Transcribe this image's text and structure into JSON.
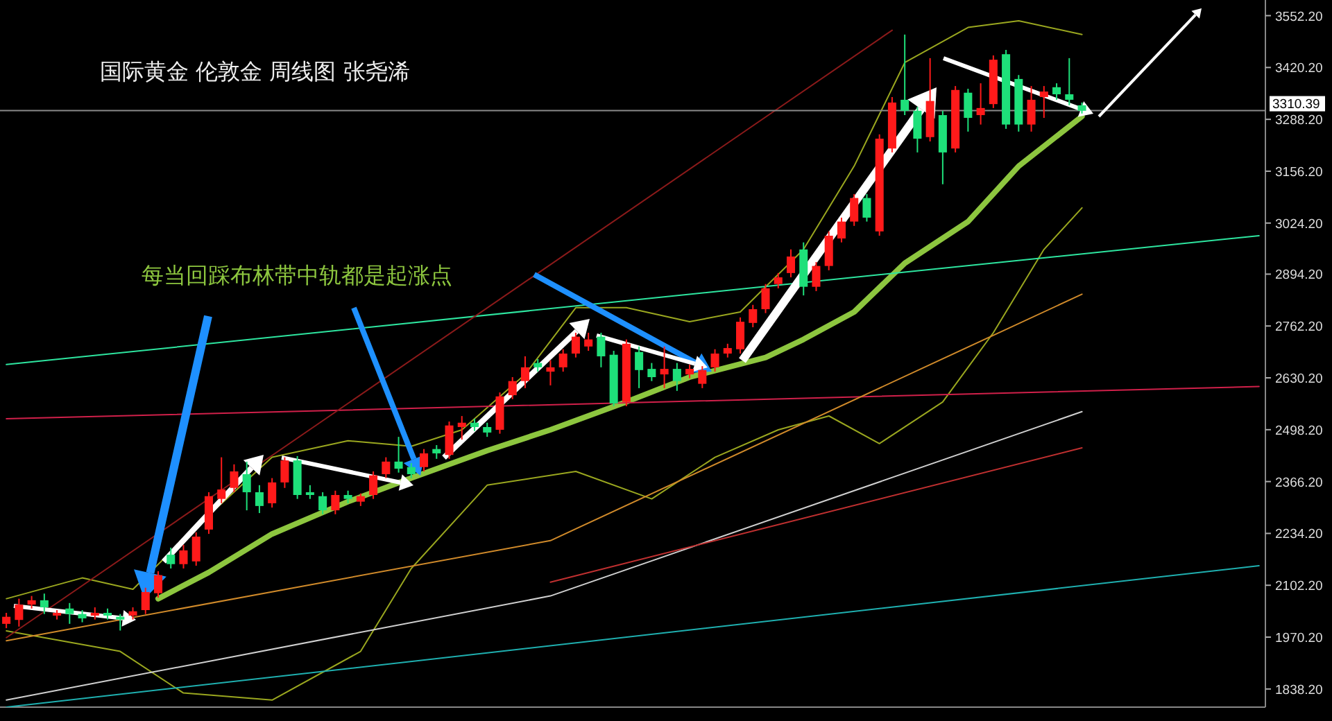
{
  "chart_data": {
    "type": "candlestick",
    "title": "国际黄金 伦敦金 周线图 张尧浠",
    "annotations": [
      "每当回踩布林带中轨都是起涨点"
    ],
    "categories": [
      null,
      null,
      null,
      null,
      null,
      null,
      null,
      null,
      null,
      null,
      null,
      null,
      null,
      null,
      null,
      null,
      null,
      null,
      null,
      null,
      null,
      null,
      null,
      null,
      null,
      null,
      null,
      null,
      null,
      null,
      null,
      null,
      null,
      null,
      null,
      null,
      null,
      null,
      null,
      null,
      null,
      null,
      null,
      null,
      null,
      null,
      null,
      null,
      null,
      null,
      null,
      null,
      null,
      null,
      null,
      null,
      null,
      null,
      null,
      null,
      null,
      null,
      null,
      null,
      null,
      null,
      null,
      null,
      null,
      null,
      null,
      null,
      null,
      null,
      null,
      null,
      null,
      null,
      null,
      null,
      null,
      null,
      null,
      null,
      null,
      null,
      null,
      null,
      null,
      null,
      null,
      null,
      null,
      null,
      null,
      null,
      null,
      null,
      null,
      null
    ],
    "ohlc": [
      [
        2004,
        2032,
        1993,
        2022
      ],
      [
        2014,
        2068,
        1997,
        2053
      ],
      [
        2053,
        2075,
        2043,
        2064
      ],
      [
        2064,
        2081,
        2029,
        2046
      ],
      [
        2025,
        2039,
        2015,
        2032
      ],
      [
        2043,
        2057,
        2004,
        2029
      ],
      [
        2029,
        2039,
        2008,
        2018
      ],
      [
        2025,
        2046,
        2015,
        2032
      ],
      [
        2032,
        2043,
        2015,
        2025
      ],
      [
        2022,
        2029,
        1987,
        2015
      ],
      [
        2025,
        2046,
        2015,
        2036
      ],
      [
        2039,
        2096,
        2029,
        2085
      ],
      [
        2082,
        2138,
        2071,
        2128
      ],
      [
        2180,
        2198,
        2145,
        2156
      ],
      [
        2156,
        2205,
        2145,
        2191
      ],
      [
        2163,
        2237,
        2152,
        2226
      ],
      [
        2244,
        2339,
        2233,
        2329
      ],
      [
        2322,
        2428,
        2311,
        2346
      ],
      [
        2350,
        2410,
        2339,
        2392
      ],
      [
        2385,
        2417,
        2293,
        2339
      ],
      [
        2339,
        2357,
        2286,
        2304
      ],
      [
        2311,
        2375,
        2300,
        2364
      ],
      [
        2364,
        2428,
        2350,
        2420
      ],
      [
        2420,
        2431,
        2322,
        2332
      ],
      [
        2339,
        2357,
        2322,
        2332
      ],
      [
        2329,
        2339,
        2283,
        2293
      ],
      [
        2293,
        2343,
        2283,
        2332
      ],
      [
        2332,
        2343,
        2311,
        2322
      ],
      [
        2315,
        2336,
        2304,
        2329
      ],
      [
        2332,
        2392,
        2322,
        2382
      ],
      [
        2385,
        2428,
        2375,
        2417
      ],
      [
        2417,
        2480,
        2389,
        2399
      ],
      [
        2403,
        2413,
        2375,
        2385
      ],
      [
        2403,
        2449,
        2392,
        2438
      ],
      [
        2449,
        2459,
        2424,
        2438
      ],
      [
        2434,
        2519,
        2424,
        2509
      ],
      [
        2505,
        2533,
        2473,
        2516
      ],
      [
        2516,
        2526,
        2495,
        2505
      ],
      [
        2505,
        2516,
        2480,
        2491
      ],
      [
        2498,
        2593,
        2488,
        2583
      ],
      [
        2586,
        2632,
        2576,
        2622
      ],
      [
        2622,
        2685,
        2604,
        2657
      ],
      [
        2668,
        2678,
        2646,
        2657
      ],
      [
        2646,
        2675,
        2611,
        2657
      ],
      [
        2657,
        2703,
        2646,
        2692
      ],
      [
        2692,
        2745,
        2682,
        2735
      ],
      [
        2710,
        2745,
        2699,
        2728
      ],
      [
        2735,
        2745,
        2657,
        2685
      ],
      [
        2689,
        2699,
        2558,
        2565
      ],
      [
        2569,
        2728,
        2558,
        2717
      ],
      [
        2696,
        2710,
        2604,
        2650
      ],
      [
        2653,
        2668,
        2622,
        2632
      ],
      [
        2639,
        2710,
        2604,
        2653
      ],
      [
        2653,
        2668,
        2597,
        2622
      ],
      [
        2639,
        2664,
        2629,
        2653
      ],
      [
        2615,
        2660,
        2604,
        2650
      ],
      [
        2657,
        2703,
        2646,
        2692
      ],
      [
        2692,
        2717,
        2682,
        2706
      ],
      [
        2703,
        2784,
        2692,
        2773
      ],
      [
        2770,
        2816,
        2759,
        2805
      ],
      [
        2805,
        2869,
        2795,
        2858
      ],
      [
        2869,
        2897,
        2858,
        2886
      ],
      [
        2897,
        2957,
        2886,
        2939
      ],
      [
        2957,
        2975,
        2840,
        2862
      ],
      [
        2862,
        2925,
        2851,
        2915
      ],
      [
        2915,
        3003,
        2904,
        2992
      ],
      [
        2985,
        3038,
        2975,
        3028
      ],
      [
        3028,
        3098,
        3017,
        3088
      ],
      [
        3088,
        3098,
        3028,
        3038
      ],
      [
        3003,
        3250,
        2992,
        3239
      ],
      [
        3214,
        3345,
        3204,
        3331
      ],
      [
        3338,
        3504,
        3299,
        3310
      ],
      [
        3310,
        3320,
        3204,
        3239
      ],
      [
        3243,
        3444,
        3232,
        3335
      ],
      [
        3299,
        3310,
        3123,
        3204
      ],
      [
        3214,
        3373,
        3204,
        3363
      ],
      [
        3356,
        3366,
        3257,
        3292
      ],
      [
        3299,
        3380,
        3275,
        3317
      ],
      [
        3327,
        3451,
        3317,
        3440
      ],
      [
        3454,
        3465,
        3264,
        3275
      ],
      [
        3391,
        3401,
        3257,
        3275
      ],
      [
        3275,
        3373,
        3257,
        3338
      ],
      [
        3345,
        3373,
        3292,
        3359
      ],
      [
        3370,
        3380,
        3338,
        3352
      ],
      [
        3352,
        3444,
        3324,
        3338
      ],
      [
        3324,
        3331,
        3303,
        3310
      ],
      null,
      null,
      null,
      null,
      null,
      null,
      null,
      null,
      null,
      null,
      null,
      null,
      null,
      null
    ],
    "colors": [
      "#ff1a1a",
      "#ff1a1a",
      "#ff1a1a",
      "#1ee07a",
      "#ff1a1a",
      "#1ee07a",
      "#1ee07a",
      "#ff1a1a",
      "#1ee07a",
      "#1ee07a",
      "#ff1a1a",
      "#ff1a1a",
      "#ff1a1a",
      "#1ee07a",
      "#ff1a1a",
      "#ff1a1a",
      "#ff1a1a",
      "#ff1a1a",
      "#ff1a1a",
      "#1ee07a",
      "#1ee07a",
      "#ff1a1a",
      "#ff1a1a",
      "#1ee07a",
      "#1ee07a",
      "#1ee07a",
      "#ff1a1a",
      "#1ee07a",
      "#ff1a1a",
      "#ff1a1a",
      "#ff1a1a",
      "#1ee07a",
      "#1ee07a",
      "#ff1a1a",
      "#1ee07a",
      "#ff1a1a",
      "#ff1a1a",
      "#1ee07a",
      "#1ee07a",
      "#ff1a1a",
      "#ff1a1a",
      "#ff1a1a",
      "#1ee07a",
      "#ff1a1a",
      "#ff1a1a",
      "#ff1a1a",
      "#ff1a1a",
      "#1ee07a",
      "#1ee07a",
      "#ff1a1a",
      "#1ee07a",
      "#1ee07a",
      "#ff1a1a",
      "#1ee07a",
      "#ff1a1a",
      "#ff1a1a",
      "#ff1a1a",
      "#ff1a1a",
      "#ff1a1a",
      "#ff1a1a",
      "#ff1a1a",
      "#ff1a1a",
      "#ff1a1a",
      "#1ee07a",
      "#ff1a1a",
      "#ff1a1a",
      "#ff1a1a",
      "#ff1a1a",
      "#1ee07a",
      "#ff1a1a",
      "#ff1a1a",
      "#1ee07a",
      "#1ee07a",
      "#ff1a1a",
      "#1ee07a",
      "#ff1a1a",
      "#1ee07a",
      "#ff1a1a",
      "#ff1a1a",
      "#1ee07a",
      "#1ee07a",
      "#ff1a1a",
      "#ff1a1a",
      "#1ee07a",
      "#1ee07a",
      "#1ee07a",
      null,
      null,
      null,
      null,
      null,
      null,
      null,
      null,
      null,
      null,
      null,
      null,
      null,
      null
    ],
    "series": [
      {
        "type": "line",
        "color": "#8dc63f",
        "values": [
          null,
          null,
          null,
          null,
          null,
          null,
          null,
          null,
          null,
          null,
          null,
          null,
          2068,
          null,
          null,
          null,
          2135,
          null,
          null,
          null,
          null,
          2233,
          null,
          null,
          null,
          null,
          null,
          2315,
          null,
          null,
          null,
          null,
          2375,
          null,
          null,
          null,
          null,
          null,
          2445,
          null,
          null,
          null,
          null,
          2498,
          null,
          null,
          null,
          null,
          null,
          2569,
          null,
          null,
          null,
          null,
          2632,
          null,
          null,
          null,
          null,
          null,
          2682,
          null,
          null,
          2728,
          null,
          null,
          null,
          2798,
          null,
          null,
          null,
          2922,
          null,
          null,
          null,
          null,
          3028,
          null,
          null,
          null,
          3169,
          null,
          null,
          null,
          null,
          3296,
          null,
          null,
          null,
          null,
          null,
          null,
          null,
          null,
          null,
          null,
          null,
          null,
          null,
          null
        ]
      },
      {
        "type": "line",
        "color": "#9aa71f",
        "values": [
          2068,
          null,
          null,
          null,
          null,
          null,
          2121,
          null,
          null,
          null,
          2092,
          null,
          null,
          null,
          null,
          2251,
          null,
          null,
          null,
          null,
          null,
          2428,
          null,
          null,
          null,
          null,
          null,
          2470,
          null,
          null,
          null,
          null,
          2456,
          null,
          null,
          null,
          2498,
          null,
          null,
          null,
          null,
          2639,
          null,
          null,
          null,
          2809,
          null,
          null,
          null,
          2809,
          null,
          null,
          null,
          null,
          2773,
          null,
          null,
          null,
          2798,
          null,
          null,
          null,
          null,
          2957,
          null,
          null,
          null,
          3169,
          null,
          null,
          null,
          3433,
          null,
          null,
          null,
          null,
          3522,
          null,
          null,
          null,
          3539,
          null,
          null,
          null,
          null,
          3504,
          null,
          null,
          null,
          null,
          null,
          null,
          null,
          null,
          null,
          null,
          null,
          null,
          null,
          null
        ]
      },
      {
        "type": "line",
        "color": "#9aa71f",
        "values": [
          1986,
          null,
          null,
          null,
          null,
          null,
          null,
          null,
          null,
          1934,
          null,
          null,
          null,
          null,
          1828,
          null,
          null,
          null,
          null,
          null,
          null,
          1810,
          null,
          null,
          null,
          null,
          null,
          null,
          1934,
          null,
          null,
          null,
          2145,
          null,
          null,
          null,
          null,
          null,
          2357,
          null,
          null,
          null,
          null,
          null,
          null,
          2392,
          null,
          null,
          null,
          null,
          null,
          2322,
          null,
          null,
          null,
          null,
          2428,
          null,
          null,
          null,
          null,
          2498,
          null,
          null,
          null,
          2533,
          null,
          null,
          null,
          2463,
          null,
          null,
          null,
          null,
          2569,
          null,
          null,
          null,
          2745,
          null,
          null,
          null,
          2957,
          null,
          null,
          3063,
          null,
          null,
          null,
          null,
          null,
          null,
          null,
          null,
          null,
          null,
          null,
          null,
          null,
          null
        ]
      },
      {
        "type": "line",
        "color": "#2ee6a0",
        "values": [
          2664,
          null,
          null,
          null,
          null,
          null,
          null,
          null,
          null,
          null,
          null,
          null,
          null,
          null,
          null,
          null,
          null,
          null,
          null,
          null,
          null,
          null,
          null,
          null,
          null,
          null,
          null,
          null,
          null,
          null,
          null,
          null,
          null,
          null,
          null,
          null,
          null,
          null,
          null,
          null,
          null,
          null,
          null,
          null,
          null,
          null,
          null,
          null,
          null,
          null,
          null,
          null,
          null,
          null,
          null,
          null,
          null,
          null,
          null,
          null,
          null,
          null,
          null,
          null,
          null,
          null,
          null,
          null,
          null,
          null,
          null,
          null,
          null,
          null,
          null,
          null,
          null,
          null,
          null,
          null,
          null,
          null,
          null,
          null,
          null,
          null,
          null,
          null,
          null,
          null,
          null,
          null,
          null,
          null,
          null,
          null,
          null,
          null,
          null,
          2992
        ]
      },
      {
        "type": "line",
        "color": "#d0204a",
        "values": [
          2526,
          null,
          null,
          null,
          null,
          null,
          null,
          null,
          null,
          null,
          null,
          null,
          null,
          null,
          null,
          null,
          null,
          null,
          null,
          null,
          null,
          null,
          null,
          null,
          null,
          null,
          null,
          null,
          null,
          null,
          null,
          null,
          null,
          null,
          null,
          null,
          null,
          null,
          null,
          null,
          null,
          null,
          null,
          null,
          null,
          null,
          null,
          null,
          null,
          null,
          null,
          null,
          null,
          null,
          null,
          null,
          null,
          null,
          null,
          null,
          null,
          null,
          null,
          null,
          null,
          null,
          null,
          null,
          null,
          null,
          null,
          null,
          null,
          null,
          null,
          null,
          null,
          null,
          null,
          null,
          null,
          null,
          null,
          null,
          null,
          null,
          null,
          null,
          null,
          null,
          null,
          null,
          null,
          null,
          null,
          null,
          null,
          null,
          null,
          2608
        ]
      },
      {
        "type": "line",
        "color": "#8b1a1a",
        "values": [
          1969,
          null,
          null,
          null,
          null,
          null,
          null,
          null,
          null,
          null,
          null,
          null,
          null,
          null,
          null,
          null,
          null,
          null,
          null,
          null,
          null,
          null,
          null,
          null,
          null,
          null,
          null,
          null,
          null,
          null,
          null,
          null,
          null,
          null,
          null,
          null,
          null,
          null,
          null,
          null,
          null,
          null,
          null,
          null,
          null,
          null,
          null,
          null,
          null,
          null,
          null,
          null,
          null,
          null,
          null,
          null,
          null,
          null,
          null,
          null,
          null,
          null,
          null,
          null,
          null,
          null,
          null,
          null,
          null,
          null,
          3515,
          null,
          null,
          null,
          null,
          null,
          null,
          null,
          null,
          null,
          null,
          null,
          null,
          null,
          null,
          null,
          null,
          null,
          null,
          null,
          null,
          null,
          null,
          null,
          null,
          null,
          null,
          null,
          null,
          null
        ]
      },
      {
        "type": "line",
        "color": "#1fb0b0",
        "values": [
          1792,
          null,
          null,
          null,
          null,
          null,
          null,
          null,
          null,
          null,
          null,
          null,
          null,
          null,
          null,
          null,
          null,
          null,
          null,
          null,
          null,
          null,
          null,
          null,
          null,
          null,
          null,
          null,
          null,
          null,
          null,
          null,
          null,
          null,
          null,
          null,
          null,
          null,
          null,
          null,
          null,
          null,
          null,
          null,
          null,
          null,
          null,
          null,
          null,
          null,
          null,
          null,
          null,
          null,
          null,
          null,
          null,
          null,
          null,
          null,
          null,
          null,
          null,
          null,
          null,
          null,
          null,
          null,
          null,
          null,
          null,
          null,
          null,
          null,
          null,
          null,
          null,
          null,
          null,
          null,
          null,
          null,
          null,
          null,
          null,
          null,
          null,
          null,
          null,
          null,
          null,
          null,
          null,
          null,
          null,
          null,
          null,
          null,
          null,
          2152
        ]
      },
      {
        "type": "line",
        "color": "#d0d0d0",
        "values": [
          1810,
          null,
          null,
          null,
          null,
          null,
          null,
          null,
          null,
          null,
          null,
          null,
          null,
          null,
          null,
          null,
          null,
          null,
          null,
          null,
          null,
          null,
          null,
          null,
          null,
          null,
          null,
          null,
          null,
          null,
          null,
          null,
          null,
          null,
          null,
          null,
          null,
          null,
          null,
          null,
          null,
          null,
          null,
          2075,
          null,
          null,
          null,
          null,
          null,
          null,
          null,
          null,
          null,
          null,
          null,
          null,
          null,
          null,
          null,
          null,
          null,
          null,
          null,
          null,
          null,
          null,
          null,
          null,
          null,
          null,
          null,
          null,
          null,
          null,
          null,
          null,
          null,
          null,
          null,
          null,
          null,
          null,
          null,
          null,
          null,
          2544,
          null,
          null,
          null,
          null,
          null,
          null,
          null,
          null,
          null,
          null,
          null,
          null,
          null,
          null
        ]
      },
      {
        "type": "line",
        "color": "#d08a2a",
        "values": [
          1961,
          null,
          null,
          null,
          null,
          null,
          null,
          null,
          null,
          null,
          null,
          null,
          null,
          null,
          null,
          null,
          null,
          null,
          null,
          null,
          null,
          null,
          null,
          null,
          null,
          null,
          null,
          null,
          null,
          null,
          null,
          null,
          null,
          null,
          null,
          null,
          null,
          null,
          null,
          null,
          null,
          null,
          null,
          2216,
          null,
          null,
          null,
          null,
          null,
          null,
          null,
          null,
          null,
          null,
          null,
          null,
          null,
          null,
          null,
          null,
          null,
          null,
          null,
          null,
          null,
          null,
          null,
          null,
          null,
          null,
          null,
          null,
          null,
          null,
          null,
          null,
          null,
          null,
          null,
          null,
          null,
          null,
          null,
          null,
          null,
          2843,
          null,
          null,
          null,
          null,
          null,
          null,
          null,
          null,
          null,
          null,
          null,
          null,
          null,
          null
        ]
      },
      {
        "type": "line",
        "color": "#c03030",
        "values": [
          null,
          null,
          null,
          null,
          null,
          null,
          null,
          null,
          null,
          null,
          null,
          null,
          null,
          null,
          null,
          null,
          null,
          null,
          null,
          null,
          null,
          null,
          null,
          null,
          null,
          null,
          null,
          null,
          null,
          null,
          null,
          null,
          null,
          null,
          null,
          null,
          null,
          null,
          null,
          null,
          null,
          null,
          null,
          2110,
          null,
          null,
          null,
          null,
          null,
          null,
          null,
          null,
          null,
          null,
          null,
          null,
          null,
          null,
          null,
          null,
          null,
          null,
          null,
          null,
          null,
          null,
          null,
          null,
          null,
          null,
          null,
          null,
          null,
          null,
          null,
          null,
          null,
          null,
          null,
          null,
          null,
          null,
          null,
          null,
          null,
          2452,
          null,
          null,
          null,
          null,
          null,
          null,
          null,
          null,
          null,
          null,
          null,
          null,
          null,
          null
        ]
      }
    ],
    "ylim": [
      1792,
      3592
    ],
    "yticks": [
      {
        "value": 3552.2,
        "label": "3552.20"
      },
      {
        "value": 3420.2,
        "label": "3420.20"
      },
      {
        "value": 3288.2,
        "label": "3288.20"
      },
      {
        "value": 3156.2,
        "label": "3156.20"
      },
      {
        "value": 3024.2,
        "label": "3024.20"
      },
      {
        "value": 2894.2,
        "label": "2894.20"
      },
      {
        "value": 2762.2,
        "label": "2762.20"
      },
      {
        "value": 2630.2,
        "label": "2630.20"
      },
      {
        "value": 2498.2,
        "label": "2498.20"
      },
      {
        "value": 2366.2,
        "label": "2366.20"
      },
      {
        "value": 2234.2,
        "label": "2234.20"
      },
      {
        "value": 2102.2,
        "label": "2102.20"
      },
      {
        "value": 1970.2,
        "label": "1970.20"
      },
      {
        "value": 1838.2,
        "label": "1838.20"
      }
    ],
    "ref_lines": [
      {
        "axis": "y",
        "value": 3310.39,
        "label": "3310.39",
        "color": "#8a8a8a"
      }
    ],
    "tick_labels": "y"
  }
}
